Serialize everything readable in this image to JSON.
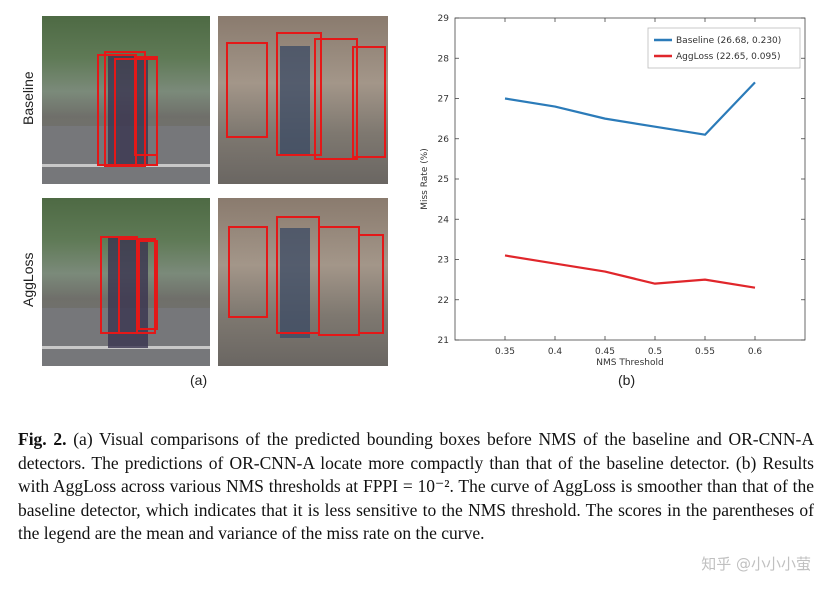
{
  "panel_a": {
    "row_labels": [
      "Baseline",
      "AggLoss"
    ],
    "caption": "(a)"
  },
  "panel_b": {
    "caption": "(b)"
  },
  "chart_data": {
    "type": "line",
    "x": [
      0.35,
      0.4,
      0.45,
      0.5,
      0.55,
      0.6
    ],
    "x_ticks": [
      "0.35",
      "0.4",
      "0.45",
      "0.5",
      "0.55",
      "0.6"
    ],
    "y_ticks": [
      "21",
      "22",
      "23",
      "24",
      "25",
      "26",
      "27",
      "28",
      "29"
    ],
    "xlabel": "NMS Threshold",
    "ylabel": "Miss Rate (%)",
    "xlim": [
      0.3,
      0.65
    ],
    "ylim": [
      21,
      29
    ],
    "grid": false,
    "legend_position": "top-right",
    "series": [
      {
        "name": "Baseline (26.68, 0.230)",
        "color": "#2b7bb9",
        "values": [
          27.0,
          26.8,
          26.5,
          26.3,
          26.1,
          27.4
        ]
      },
      {
        "name": "AggLoss (22.65, 0.095)",
        "color": "#e0262b",
        "values": [
          23.1,
          22.9,
          22.7,
          22.4,
          22.5,
          22.3
        ]
      }
    ]
  },
  "figure_caption": {
    "label": "Fig. 2.",
    "text": " (a) Visual comparisons of the predicted bounding boxes before NMS of the baseline and OR-CNN-A detectors. The predictions of OR-CNN-A locate more compactly than that of the baseline detector. (b) Results with AggLoss across various NMS thresholds at FPPI = 10⁻². The curve of AggLoss is smoother than that of the baseline detector, which indicates that it is less sensitive to the NMS threshold. The scores in the parentheses of the legend are the mean and variance of the miss rate on the curve."
  },
  "watermark": "知乎 @小小小萤"
}
